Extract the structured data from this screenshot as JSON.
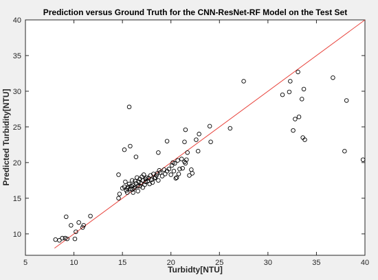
{
  "chart_data": {
    "type": "scatter",
    "title": "Prediction versus Ground Truth for the CNN-ResNet-RF Model on the Test Set",
    "xlabel": "Turbidty[NTU]",
    "ylabel": "Predicted Turbidity[NTU]",
    "xlim": [
      5,
      40
    ],
    "ylim": [
      7,
      40
    ],
    "xticks": [
      "5",
      "10",
      "15",
      "20",
      "25",
      "30",
      "35",
      "40"
    ],
    "yticks": [
      "10",
      "15",
      "20",
      "25",
      "30",
      "35",
      "40"
    ],
    "grid": false,
    "legend": "none",
    "colors": {
      "marker": "#000000",
      "fit_line": "#e8413a"
    },
    "fit_line": {
      "x": [
        8.0,
        40.0
      ],
      "y": [
        8.0,
        40.0
      ]
    },
    "series": [
      {
        "marker": "open-circle",
        "points": [
          [
            8.1,
            9.2
          ],
          [
            8.5,
            9.1
          ],
          [
            8.8,
            9.4
          ],
          [
            9.1,
            9.4
          ],
          [
            9.3,
            9.3
          ],
          [
            9.2,
            12.4
          ],
          [
            9.7,
            11.2
          ],
          [
            10.1,
            9.3
          ],
          [
            10.2,
            10.3
          ],
          [
            10.5,
            11.6
          ],
          [
            11.0,
            11.2
          ],
          [
            10.9,
            10.9
          ],
          [
            11.7,
            12.5
          ],
          [
            14.6,
            15.0
          ],
          [
            14.7,
            15.6
          ],
          [
            14.6,
            18.3
          ],
          [
            15.0,
            16.4
          ],
          [
            15.2,
            16.6
          ],
          [
            15.3,
            17.3
          ],
          [
            15.4,
            16.1
          ],
          [
            15.5,
            15.8
          ],
          [
            15.5,
            16.4
          ],
          [
            15.6,
            16.6
          ],
          [
            15.7,
            17.0
          ],
          [
            15.8,
            16.3
          ],
          [
            15.9,
            16.7
          ],
          [
            16.0,
            16.2
          ],
          [
            16.0,
            17.5
          ],
          [
            16.1,
            16.8
          ],
          [
            16.1,
            15.8
          ],
          [
            16.2,
            16.4
          ],
          [
            16.3,
            17.4
          ],
          [
            16.3,
            16.6
          ],
          [
            16.4,
            17.1
          ],
          [
            16.5,
            17.9
          ],
          [
            16.6,
            16.7
          ],
          [
            16.6,
            16.0
          ],
          [
            16.7,
            17.3
          ],
          [
            16.8,
            16.7
          ],
          [
            16.8,
            17.7
          ],
          [
            16.9,
            17.1
          ],
          [
            17.0,
            18.0
          ],
          [
            17.1,
            16.5
          ],
          [
            17.1,
            17.5
          ],
          [
            17.2,
            18.3
          ],
          [
            17.3,
            16.9
          ],
          [
            17.4,
            17.3
          ],
          [
            17.4,
            17.7
          ],
          [
            17.5,
            17.9
          ],
          [
            17.6,
            17.4
          ],
          [
            17.7,
            17.8
          ],
          [
            17.8,
            17.0
          ],
          [
            17.9,
            18.2
          ],
          [
            18.0,
            17.6
          ],
          [
            18.1,
            17.2
          ],
          [
            18.2,
            18.4
          ],
          [
            18.3,
            17.8
          ],
          [
            18.4,
            17.9
          ],
          [
            18.5,
            18.2
          ],
          [
            18.6,
            18.5
          ],
          [
            18.7,
            17.5
          ],
          [
            18.8,
            18.9
          ],
          [
            18.9,
            18.6
          ],
          [
            19.1,
            18.1
          ],
          [
            19.3,
            19.0
          ],
          [
            19.4,
            18.4
          ],
          [
            19.6,
            18.8
          ],
          [
            19.8,
            19.1
          ],
          [
            20.0,
            18.3
          ],
          [
            20.1,
            19.6
          ],
          [
            20.2,
            20.0
          ],
          [
            20.3,
            18.8
          ],
          [
            20.4,
            19.9
          ],
          [
            20.5,
            17.8
          ],
          [
            20.6,
            17.9
          ],
          [
            20.7,
            20.3
          ],
          [
            20.8,
            18.4
          ],
          [
            20.9,
            19.1
          ],
          [
            21.1,
            20.5
          ],
          [
            21.2,
            19.2
          ],
          [
            21.4,
            20.1
          ],
          [
            21.5,
            19.9
          ],
          [
            21.6,
            20.4
          ],
          [
            21.7,
            21.4
          ],
          [
            21.9,
            18.2
          ],
          [
            22.1,
            19.0
          ],
          [
            22.2,
            18.5
          ],
          [
            22.6,
            23.2
          ],
          [
            22.8,
            21.6
          ],
          [
            24.1,
            22.9
          ],
          [
            15.7,
            27.8
          ],
          [
            15.8,
            22.3
          ],
          [
            15.2,
            21.8
          ],
          [
            16.4,
            20.8
          ],
          [
            18.7,
            21.4
          ],
          [
            19.6,
            23.0
          ],
          [
            21.4,
            22.9
          ],
          [
            21.5,
            24.6
          ],
          [
            22.9,
            24.0
          ],
          [
            24.0,
            25.1
          ],
          [
            26.1,
            24.8
          ],
          [
            27.5,
            31.4
          ],
          [
            31.5,
            29.5
          ],
          [
            32.2,
            29.9
          ],
          [
            32.3,
            31.4
          ],
          [
            32.8,
            26.1
          ],
          [
            32.6,
            24.5
          ],
          [
            33.2,
            26.4
          ],
          [
            33.1,
            32.7
          ],
          [
            33.5,
            28.9
          ],
          [
            33.6,
            23.5
          ],
          [
            33.7,
            30.3
          ],
          [
            33.8,
            23.2
          ],
          [
            36.7,
            31.9
          ],
          [
            37.9,
            21.6
          ],
          [
            38.1,
            28.7
          ],
          [
            39.8,
            20.4
          ]
        ]
      }
    ]
  }
}
